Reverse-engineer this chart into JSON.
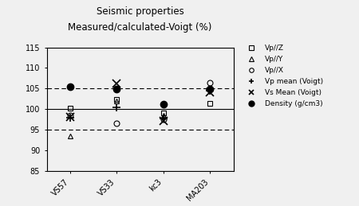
{
  "title_line1": "Seismic properties",
  "title_line2": "Measured/calculated-Voigt (%)",
  "x_labels": [
    "VS57",
    "VS33",
    "kc3",
    "MA203"
  ],
  "ylim": [
    85,
    115
  ],
  "yticks": [
    85,
    90,
    95,
    100,
    105,
    110,
    115
  ],
  "ytick_labels": [
    "85",
    "90",
    "95",
    "100",
    "105",
    "110",
    "115"
  ],
  "hline_solid": 100,
  "hline_dashed": [
    95,
    105
  ],
  "series": {
    "Vp//Z": [
      100.2,
      102.3,
      99.0,
      101.5
    ],
    "Vp//Y": [
      93.5,
      102.0,
      98.5,
      104.8
    ],
    "Vp//X": [
      98.5,
      96.5,
      97.5,
      106.5
    ],
    "Vp mean (Voigt)": [
      98.0,
      100.5,
      97.8,
      104.5
    ],
    "Vs Mean (Voigt)": [
      98.2,
      106.3,
      97.2,
      104.2
    ],
    "Density (g/cm3)": [
      105.5,
      104.8,
      101.2,
      104.8
    ]
  },
  "legend_labels": [
    "Vp//Z",
    "Vp//Y",
    "Vp//X",
    "Vp mean (Voigt)",
    "Vs Mean (Voigt)",
    "Density (g/cm3)"
  ],
  "markersize": 5,
  "background_color": "#f0f0f0",
  "plot_bg": "#f0f0f0"
}
